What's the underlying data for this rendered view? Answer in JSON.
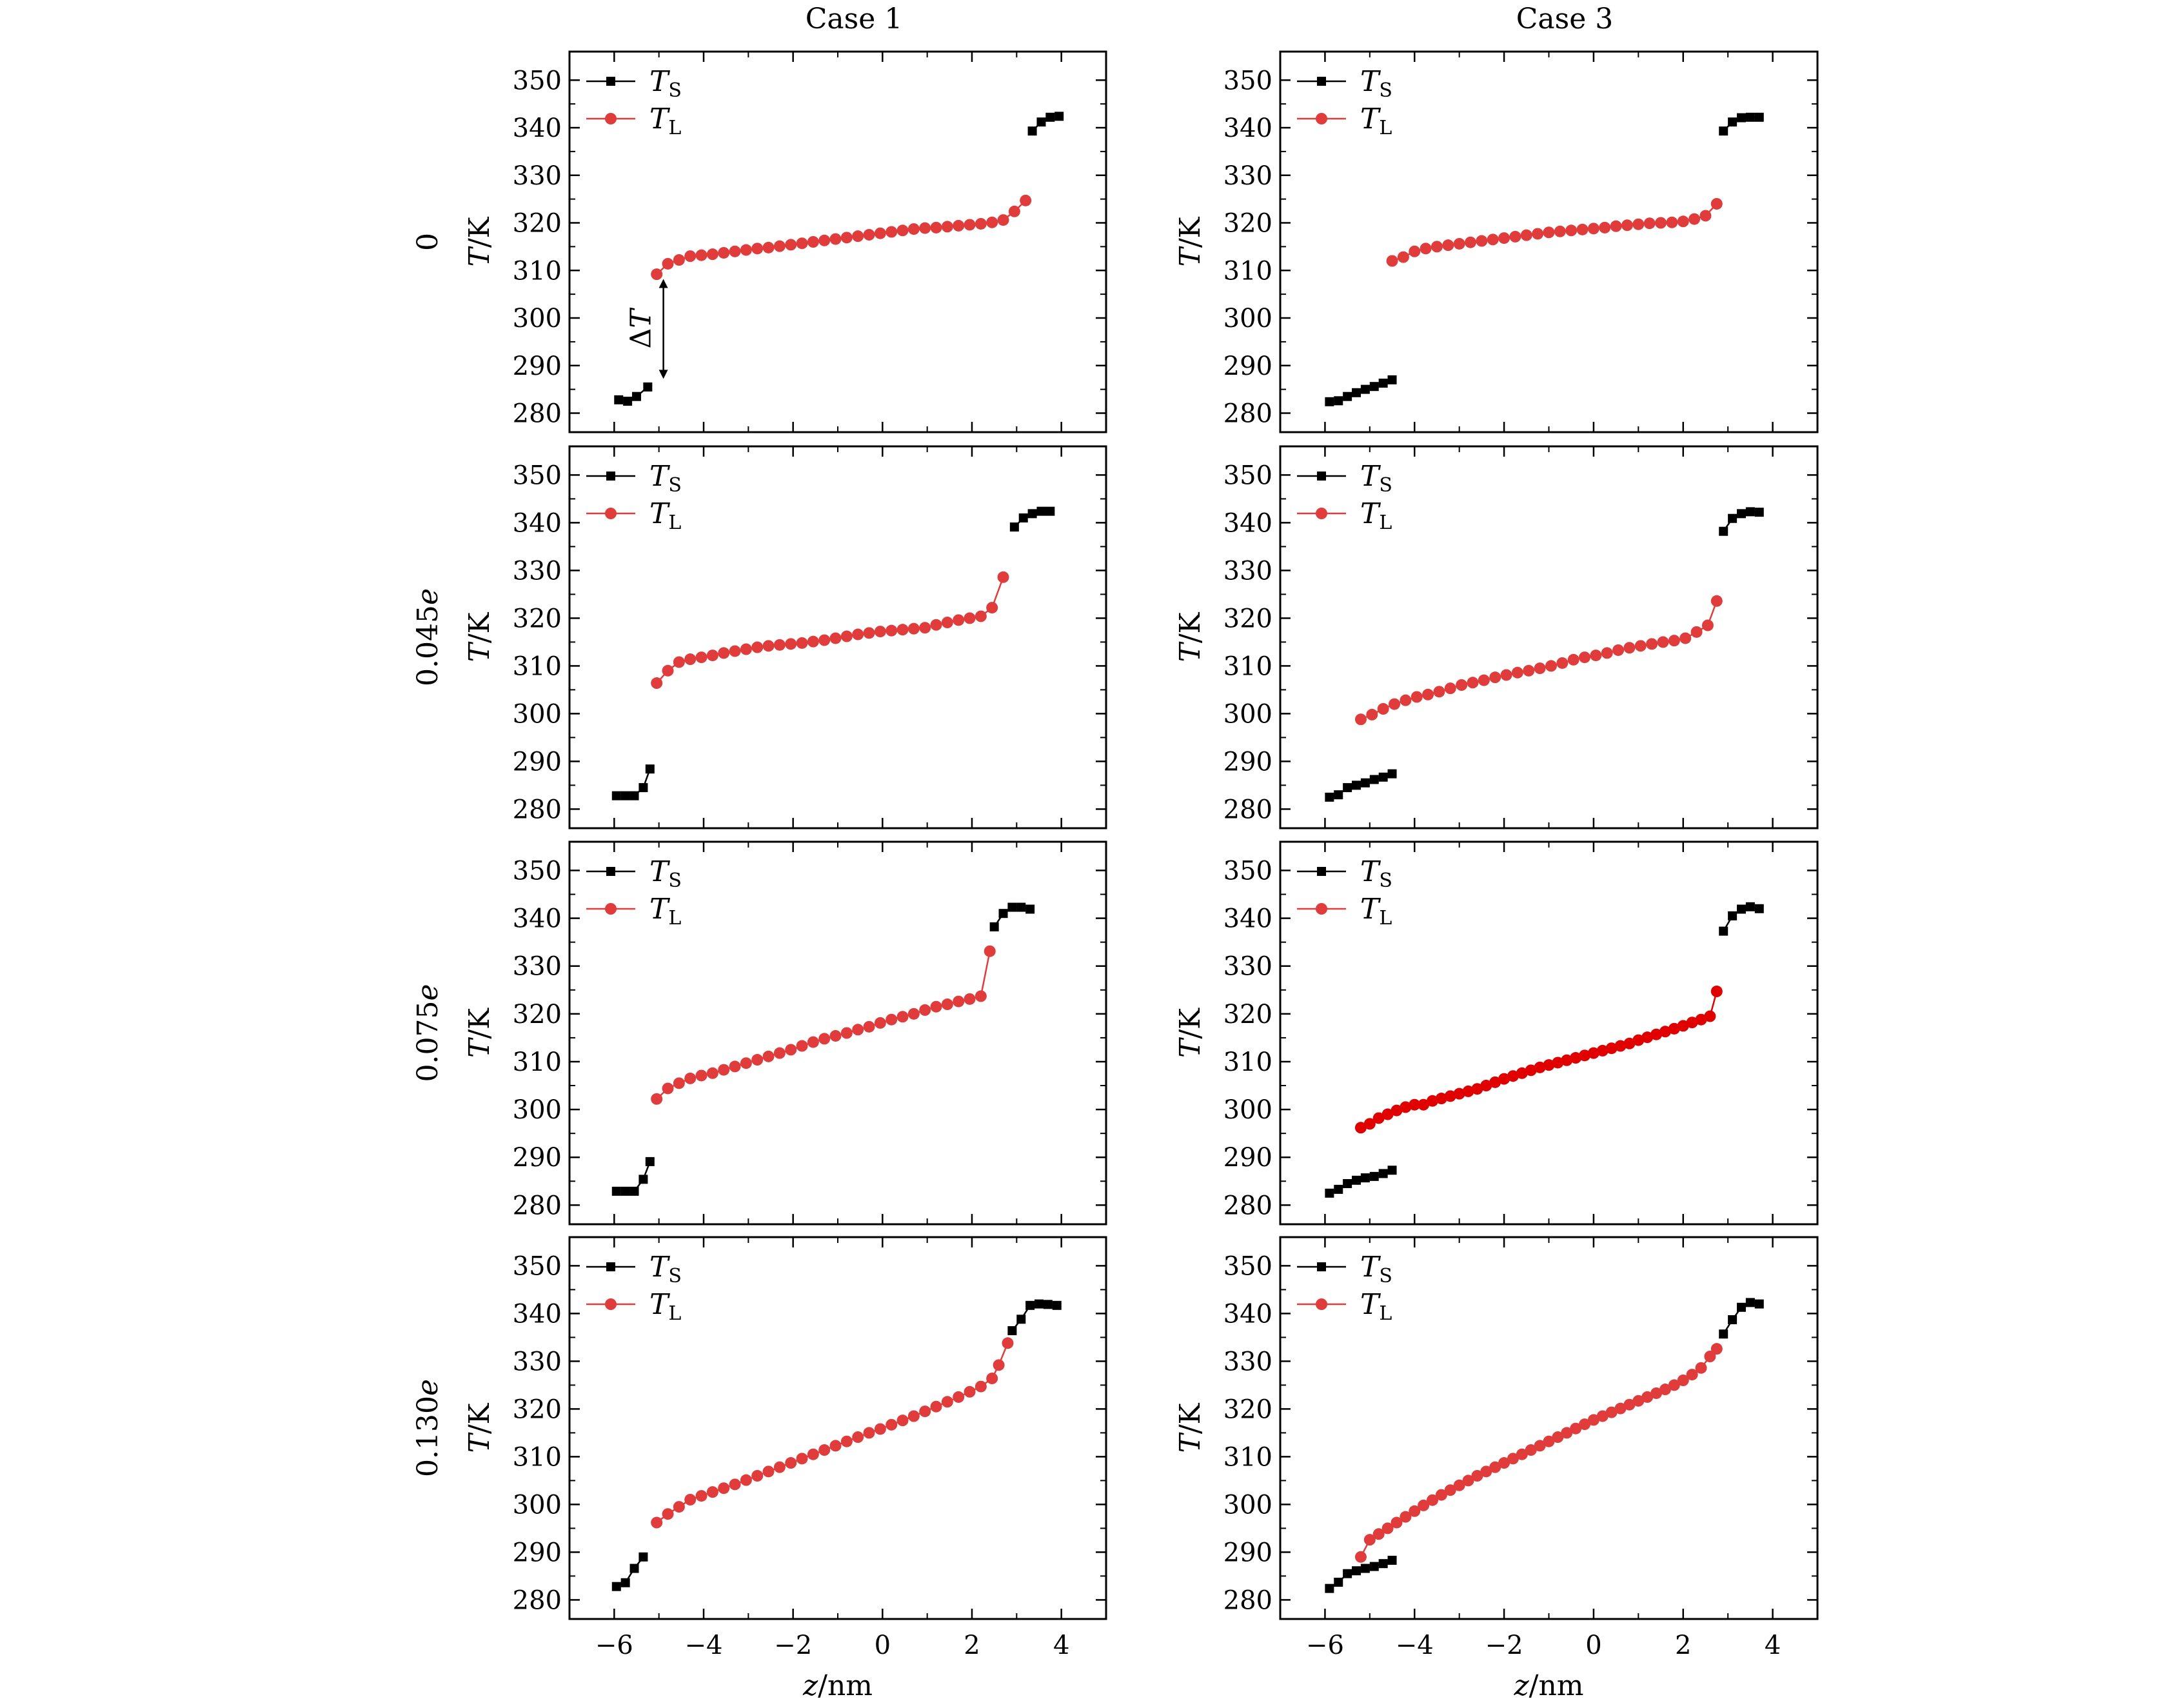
{
  "column_titles": [
    "Case 1",
    "Case 3"
  ],
  "row_labels": [
    "0",
    "0.045e",
    "0.075e",
    "0.130e"
  ],
  "y_label": "T/K",
  "x_label": "z/nm",
  "legend": [
    "TS",
    "TL"
  ],
  "annotation": "ΔT",
  "colors": {
    "solid": "#000000",
    "liquid": "#e03c3c",
    "liquid_dark": "#e00000"
  },
  "x_ticks": [
    "−6",
    "−4",
    "−2",
    "0",
    "2",
    "4"
  ],
  "y_ticks": [
    "280",
    "290",
    "300",
    "310",
    "320",
    "330",
    "340",
    "350"
  ],
  "chart_data": [
    {
      "type": "line",
      "column": "Case 1",
      "row": "0",
      "xlim": [
        -7,
        5
      ],
      "ylim": [
        276,
        356
      ],
      "series": [
        {
          "name": "TS",
          "x": [
            -5.9,
            -5.7,
            -5.5,
            -5.25,
            3.35,
            3.55,
            3.75,
            3.95
          ],
          "y": [
            282.8,
            282.5,
            283.5,
            285.5,
            339.3,
            341.2,
            342.2,
            342.4
          ]
        },
        {
          "name": "TL",
          "x": [
            -5.05,
            -4.8,
            -4.55,
            -4.3,
            -4.05,
            -3.8,
            -3.55,
            -3.3,
            -3.05,
            -2.8,
            -2.55,
            -2.3,
            -2.05,
            -1.8,
            -1.55,
            -1.3,
            -1.05,
            -0.8,
            -0.55,
            -0.3,
            -0.05,
            0.2,
            0.45,
            0.7,
            0.95,
            1.2,
            1.45,
            1.7,
            1.95,
            2.2,
            2.45,
            2.7,
            2.95,
            3.2
          ],
          "y": [
            309.2,
            311.4,
            312.2,
            313.0,
            313.2,
            313.4,
            313.7,
            314.0,
            314.3,
            314.6,
            314.8,
            315.1,
            315.4,
            315.7,
            316.0,
            316.3,
            316.6,
            316.9,
            317.2,
            317.5,
            317.8,
            318.1,
            318.4,
            318.7,
            318.9,
            319.0,
            319.2,
            319.4,
            319.6,
            319.8,
            320.1,
            320.6,
            322.4,
            324.7
          ]
        }
      ]
    },
    {
      "type": "line",
      "column": "Case 3",
      "row": "0",
      "xlim": [
        -7,
        5
      ],
      "ylim": [
        276,
        356
      ],
      "series": [
        {
          "name": "TS",
          "x": [
            -5.9,
            -5.7,
            -5.5,
            -5.3,
            -5.1,
            -4.9,
            -4.7,
            -4.5,
            2.9,
            3.1,
            3.3,
            3.5,
            3.7
          ],
          "y": [
            282.4,
            282.6,
            283.5,
            284.3,
            285.0,
            285.6,
            286.3,
            287.0,
            339.3,
            341.2,
            342.1,
            342.2,
            342.2
          ]
        },
        {
          "name": "TL",
          "x": [
            -4.5,
            -4.25,
            -4.0,
            -3.75,
            -3.5,
            -3.25,
            -3.0,
            -2.75,
            -2.5,
            -2.25,
            -2.0,
            -1.75,
            -1.5,
            -1.25,
            -1.0,
            -0.75,
            -0.5,
            -0.25,
            0.0,
            0.25,
            0.5,
            0.75,
            1.0,
            1.25,
            1.5,
            1.75,
            2.0,
            2.25,
            2.5,
            2.75
          ],
          "y": [
            312.0,
            312.8,
            314.0,
            314.6,
            315.0,
            315.3,
            315.6,
            315.9,
            316.2,
            316.5,
            316.8,
            317.1,
            317.4,
            317.7,
            318.0,
            318.2,
            318.4,
            318.6,
            318.8,
            319.0,
            319.3,
            319.5,
            319.7,
            319.9,
            320.0,
            320.1,
            320.3,
            320.8,
            321.5,
            324.0
          ]
        }
      ]
    },
    {
      "type": "line",
      "column": "Case 1",
      "row": "0.045e",
      "xlim": [
        -7,
        5
      ],
      "ylim": [
        276,
        356
      ],
      "series": [
        {
          "name": "TS",
          "x": [
            -5.95,
            -5.75,
            -5.55,
            -5.35,
            -5.2,
            2.95,
            3.15,
            3.35,
            3.55,
            3.75
          ],
          "y": [
            282.8,
            282.8,
            282.8,
            284.5,
            288.4,
            339.1,
            341.0,
            341.9,
            342.4,
            342.4
          ]
        },
        {
          "name": "TL",
          "x": [
            -5.05,
            -4.8,
            -4.55,
            -4.3,
            -4.05,
            -3.8,
            -3.55,
            -3.3,
            -3.05,
            -2.8,
            -2.55,
            -2.3,
            -2.05,
            -1.8,
            -1.55,
            -1.3,
            -1.05,
            -0.8,
            -0.55,
            -0.3,
            -0.05,
            0.2,
            0.45,
            0.7,
            0.95,
            1.2,
            1.45,
            1.7,
            1.95,
            2.2,
            2.45,
            2.7
          ],
          "y": [
            306.4,
            309.0,
            310.8,
            311.4,
            311.8,
            312.2,
            312.7,
            313.1,
            313.5,
            313.9,
            314.2,
            314.4,
            314.6,
            314.8,
            315.1,
            315.4,
            315.8,
            316.2,
            316.6,
            316.9,
            317.2,
            317.4,
            317.6,
            317.8,
            318.0,
            318.6,
            319.1,
            319.6,
            320.0,
            320.4,
            322.2,
            328.6
          ]
        }
      ]
    },
    {
      "type": "line",
      "column": "Case 3",
      "row": "0.045e",
      "xlim": [
        -7,
        5
      ],
      "ylim": [
        276,
        356
      ],
      "series": [
        {
          "name": "TS",
          "x": [
            -5.9,
            -5.7,
            -5.5,
            -5.3,
            -5.1,
            -4.9,
            -4.7,
            -4.5,
            2.9,
            3.1,
            3.3,
            3.5,
            3.7
          ],
          "y": [
            282.5,
            283.0,
            284.5,
            285.0,
            285.5,
            286.2,
            286.7,
            287.4,
            338.2,
            340.9,
            341.9,
            342.3,
            342.2
          ]
        },
        {
          "name": "TL",
          "x": [
            -5.2,
            -4.95,
            -4.7,
            -4.45,
            -4.2,
            -3.95,
            -3.7,
            -3.45,
            -3.2,
            -2.95,
            -2.7,
            -2.45,
            -2.2,
            -1.95,
            -1.7,
            -1.45,
            -1.2,
            -0.95,
            -0.7,
            -0.45,
            -0.2,
            0.05,
            0.3,
            0.55,
            0.8,
            1.05,
            1.3,
            1.55,
            1.8,
            2.05,
            2.3,
            2.55,
            2.75
          ],
          "y": [
            298.8,
            299.8,
            301.0,
            302.0,
            302.8,
            303.5,
            304.0,
            304.6,
            305.3,
            306.0,
            306.5,
            307.0,
            307.6,
            308.1,
            308.6,
            309.0,
            309.5,
            310.0,
            310.6,
            311.3,
            311.8,
            312.2,
            312.7,
            313.3,
            313.8,
            314.2,
            314.6,
            315.0,
            315.3,
            315.8,
            317.1,
            318.5,
            323.6
          ]
        }
      ]
    },
    {
      "type": "line",
      "column": "Case 1",
      "row": "0.075e",
      "xlim": [
        -7,
        5
      ],
      "ylim": [
        276,
        356
      ],
      "series": [
        {
          "name": "TS",
          "x": [
            -5.95,
            -5.75,
            -5.55,
            -5.35,
            -5.2,
            2.5,
            2.7,
            2.9,
            3.1,
            3.3
          ],
          "y": [
            282.9,
            282.9,
            282.9,
            285.4,
            289.1,
            338.2,
            341.0,
            342.3,
            342.3,
            341.9
          ]
        },
        {
          "name": "TL",
          "x": [
            -5.05,
            -4.8,
            -4.55,
            -4.3,
            -4.05,
            -3.8,
            -3.55,
            -3.3,
            -3.05,
            -2.8,
            -2.55,
            -2.3,
            -2.05,
            -1.8,
            -1.55,
            -1.3,
            -1.05,
            -0.8,
            -0.55,
            -0.3,
            -0.05,
            0.2,
            0.45,
            0.7,
            0.95,
            1.2,
            1.45,
            1.7,
            1.95,
            2.2,
            2.4
          ],
          "y": [
            302.2,
            304.4,
            305.5,
            306.5,
            307.1,
            307.6,
            308.3,
            309.0,
            309.7,
            310.4,
            311.1,
            311.8,
            312.5,
            313.3,
            314.1,
            314.8,
            315.4,
            316.0,
            316.7,
            317.3,
            318.1,
            318.8,
            319.4,
            320.0,
            320.8,
            321.5,
            322.0,
            322.6,
            323.1,
            323.7,
            333.1
          ]
        }
      ]
    },
    {
      "type": "line",
      "column": "Case 3",
      "row": "0.075e",
      "xlim": [
        -7,
        5
      ],
      "ylim": [
        276,
        356
      ],
      "series": [
        {
          "name": "TS",
          "x": [
            -5.9,
            -5.7,
            -5.5,
            -5.3,
            -5.1,
            -4.9,
            -4.7,
            -4.5,
            2.9,
            3.1,
            3.3,
            3.5,
            3.7
          ],
          "y": [
            282.5,
            283.3,
            284.5,
            285.2,
            285.7,
            286.0,
            286.6,
            287.3,
            337.3,
            340.5,
            341.9,
            342.4,
            342.0
          ]
        },
        {
          "name": "TL",
          "x": [
            -5.2,
            -5.0,
            -4.8,
            -4.6,
            -4.4,
            -4.2,
            -4.0,
            -3.8,
            -3.6,
            -3.4,
            -3.2,
            -3.0,
            -2.8,
            -2.6,
            -2.4,
            -2.2,
            -2.0,
            -1.8,
            -1.6,
            -1.4,
            -1.2,
            -1.0,
            -0.8,
            -0.6,
            -0.4,
            -0.2,
            0.0,
            0.2,
            0.4,
            0.6,
            0.8,
            1.0,
            1.2,
            1.4,
            1.6,
            1.8,
            2.0,
            2.2,
            2.4,
            2.6,
            2.75
          ],
          "y": [
            296.2,
            297.0,
            298.2,
            299.0,
            299.8,
            300.5,
            301.0,
            301.0,
            301.8,
            302.3,
            302.8,
            303.3,
            303.8,
            304.3,
            305.0,
            305.7,
            306.4,
            307.0,
            307.6,
            308.2,
            308.8,
            309.3,
            309.8,
            310.3,
            310.8,
            311.3,
            311.8,
            312.3,
            312.8,
            313.3,
            313.8,
            314.5,
            315.1,
            315.7,
            316.3,
            316.9,
            317.5,
            318.2,
            318.8,
            319.5,
            324.7
          ]
        }
      ]
    },
    {
      "type": "line",
      "column": "Case 1",
      "row": "0.130e",
      "xlim": [
        -7,
        5
      ],
      "ylim": [
        276,
        356
      ],
      "series": [
        {
          "name": "TS",
          "x": [
            -5.95,
            -5.75,
            -5.55,
            -5.35,
            2.9,
            3.1,
            3.3,
            3.5,
            3.7,
            3.9
          ],
          "y": [
            282.8,
            283.6,
            286.6,
            289.0,
            336.4,
            338.8,
            341.7,
            342.0,
            341.9,
            341.7
          ]
        },
        {
          "name": "TL",
          "x": [
            -5.05,
            -4.8,
            -4.55,
            -4.3,
            -4.05,
            -3.8,
            -3.55,
            -3.3,
            -3.05,
            -2.8,
            -2.55,
            -2.3,
            -2.05,
            -1.8,
            -1.55,
            -1.3,
            -1.05,
            -0.8,
            -0.55,
            -0.3,
            -0.05,
            0.2,
            0.45,
            0.7,
            0.95,
            1.2,
            1.45,
            1.7,
            1.95,
            2.2,
            2.45,
            2.6,
            2.8
          ],
          "y": [
            296.2,
            298.0,
            299.5,
            301.0,
            301.8,
            302.6,
            303.4,
            304.2,
            305.1,
            306.0,
            306.9,
            307.8,
            308.7,
            309.6,
            310.5,
            311.4,
            312.3,
            313.2,
            314.1,
            315.0,
            315.8,
            316.7,
            317.6,
            318.5,
            319.5,
            320.5,
            321.5,
            322.5,
            323.6,
            324.7,
            326.4,
            329.2,
            333.8
          ]
        }
      ]
    },
    {
      "type": "line",
      "column": "Case 3",
      "row": "0.130e",
      "xlim": [
        -7,
        5
      ],
      "ylim": [
        276,
        356
      ],
      "series": [
        {
          "name": "TS",
          "x": [
            -5.9,
            -5.7,
            -5.5,
            -5.3,
            -5.1,
            -4.9,
            -4.7,
            -4.5,
            2.9,
            3.1,
            3.3,
            3.5,
            3.7
          ],
          "y": [
            282.4,
            283.7,
            285.5,
            286.1,
            286.6,
            287.0,
            287.6,
            288.3,
            335.7,
            338.7,
            341.3,
            342.3,
            342.0
          ]
        },
        {
          "name": "TL",
          "x": [
            -5.2,
            -5.0,
            -4.8,
            -4.6,
            -4.4,
            -4.2,
            -4.0,
            -3.8,
            -3.6,
            -3.4,
            -3.2,
            -3.0,
            -2.8,
            -2.6,
            -2.4,
            -2.2,
            -2.0,
            -1.8,
            -1.6,
            -1.4,
            -1.2,
            -1.0,
            -0.8,
            -0.6,
            -0.4,
            -0.2,
            0.0,
            0.2,
            0.4,
            0.6,
            0.8,
            1.0,
            1.2,
            1.4,
            1.6,
            1.8,
            2.0,
            2.2,
            2.4,
            2.6,
            2.75
          ],
          "y": [
            289.0,
            292.6,
            293.8,
            295.0,
            296.2,
            297.4,
            298.6,
            299.8,
            300.9,
            302.0,
            303.0,
            304.0,
            305.0,
            306.0,
            306.9,
            307.8,
            308.7,
            309.6,
            310.5,
            311.4,
            312.3,
            313.2,
            314.1,
            315.0,
            315.9,
            316.8,
            317.7,
            318.5,
            319.3,
            320.1,
            320.9,
            321.7,
            322.5,
            323.3,
            324.1,
            325.0,
            326.0,
            327.2,
            328.6,
            331.0,
            332.6
          ]
        }
      ]
    }
  ]
}
